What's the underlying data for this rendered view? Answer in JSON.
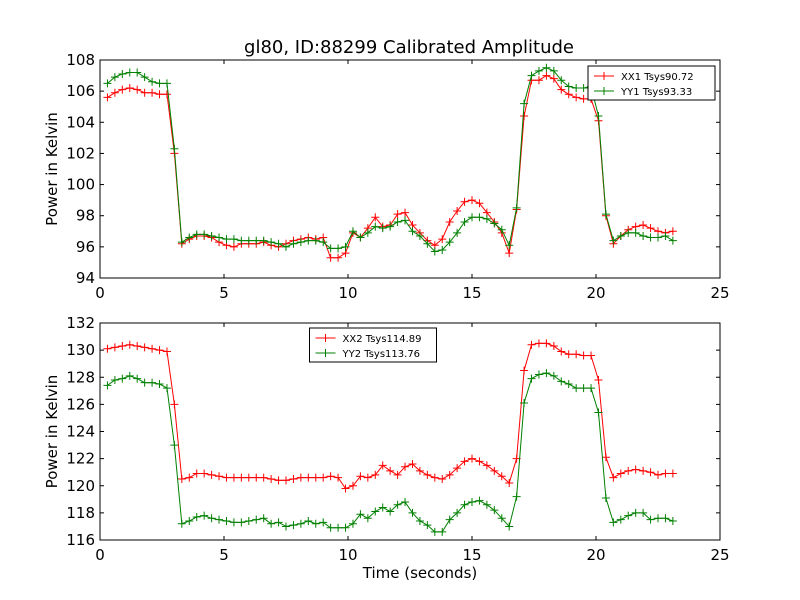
{
  "page_title": "gl80, ID:88299 Calibrated Amplitude",
  "chart_data": [
    {
      "type": "line",
      "title": "gl80, ID:88299 Calibrated Amplitude",
      "xlabel": "",
      "ylabel": "Power in Kelvin",
      "xlim": [
        0,
        25
      ],
      "ylim": [
        94,
        108
      ],
      "xticks": [
        0,
        5,
        10,
        15,
        20,
        25
      ],
      "yticks": [
        94,
        96,
        98,
        100,
        102,
        104,
        106,
        108
      ],
      "grid": false,
      "legend_position": "top-right",
      "x": [
        0.3,
        0.6,
        0.9,
        1.2,
        1.5,
        1.8,
        2.1,
        2.4,
        2.7,
        3.0,
        3.3,
        3.6,
        3.9,
        4.2,
        4.5,
        4.8,
        5.1,
        5.4,
        5.7,
        6.0,
        6.3,
        6.6,
        6.9,
        7.2,
        7.5,
        7.8,
        8.1,
        8.4,
        8.7,
        9.0,
        9.3,
        9.6,
        9.9,
        10.2,
        10.5,
        10.8,
        11.1,
        11.4,
        11.7,
        12.0,
        12.3,
        12.6,
        12.9,
        13.2,
        13.5,
        13.8,
        14.1,
        14.4,
        14.7,
        15.0,
        15.3,
        15.6,
        15.9,
        16.2,
        16.5,
        16.8,
        17.1,
        17.4,
        17.7,
        18.0,
        18.3,
        18.6,
        18.9,
        19.2,
        19.5,
        19.8,
        20.1,
        20.4,
        20.7,
        21.0,
        21.3,
        21.6,
        21.9,
        22.2,
        22.5,
        22.8,
        23.1
      ],
      "series": [
        {
          "name": "XX1 Tsys90.72",
          "color": "#ff0000",
          "values": [
            105.6,
            105.9,
            106.1,
            106.2,
            106.1,
            105.9,
            105.9,
            105.8,
            105.8,
            102.0,
            96.2,
            96.5,
            96.7,
            96.7,
            96.6,
            96.3,
            96.1,
            96.0,
            96.2,
            96.2,
            96.2,
            96.3,
            96.1,
            96.0,
            96.2,
            96.4,
            96.5,
            96.6,
            96.5,
            96.6,
            95.3,
            95.3,
            95.6,
            96.9,
            96.6,
            97.2,
            97.9,
            97.3,
            97.4,
            98.1,
            98.2,
            97.4,
            96.9,
            96.4,
            96.1,
            96.5,
            97.6,
            98.3,
            98.9,
            99.0,
            98.8,
            98.2,
            97.6,
            96.9,
            95.6,
            98.4,
            104.4,
            106.7,
            106.7,
            107.0,
            106.8,
            106.1,
            105.8,
            105.6,
            105.5,
            105.5,
            104.1,
            98.0,
            96.2,
            96.7,
            97.1,
            97.3,
            97.4,
            97.2,
            97.0,
            96.9,
            97.0
          ]
        },
        {
          "name": "YY1 Tsys93.33",
          "color": "#008000",
          "values": [
            106.5,
            106.9,
            107.1,
            107.2,
            107.2,
            106.9,
            106.6,
            106.5,
            106.5,
            102.3,
            96.3,
            96.6,
            96.8,
            96.8,
            96.7,
            96.6,
            96.5,
            96.5,
            96.4,
            96.4,
            96.4,
            96.4,
            96.3,
            96.2,
            96.0,
            96.2,
            96.3,
            96.4,
            96.4,
            96.3,
            95.9,
            95.9,
            96.0,
            97.0,
            96.6,
            96.9,
            97.3,
            97.2,
            97.3,
            97.6,
            97.7,
            97.0,
            96.7,
            96.2,
            95.7,
            95.8,
            96.3,
            96.9,
            97.6,
            97.9,
            97.9,
            97.8,
            97.5,
            97.1,
            96.1,
            98.5,
            105.2,
            107.0,
            107.3,
            107.5,
            107.3,
            106.7,
            106.3,
            106.2,
            106.2,
            106.3,
            104.4,
            98.1,
            96.4,
            96.7,
            96.9,
            96.9,
            96.7,
            96.6,
            96.6,
            96.7,
            96.4
          ]
        }
      ]
    },
    {
      "type": "line",
      "title": "",
      "xlabel": "Time (seconds)",
      "ylabel": "Power in Kelvin",
      "xlim": [
        0,
        25
      ],
      "ylim": [
        116,
        132
      ],
      "xticks": [
        0,
        5,
        10,
        15,
        20,
        25
      ],
      "yticks": [
        116,
        118,
        120,
        122,
        124,
        126,
        128,
        130,
        132
      ],
      "grid": false,
      "legend_position": "top-center",
      "x": [
        0.3,
        0.6,
        0.9,
        1.2,
        1.5,
        1.8,
        2.1,
        2.4,
        2.7,
        3.0,
        3.3,
        3.6,
        3.9,
        4.2,
        4.5,
        4.8,
        5.1,
        5.4,
        5.7,
        6.0,
        6.3,
        6.6,
        6.9,
        7.2,
        7.5,
        7.8,
        8.1,
        8.4,
        8.7,
        9.0,
        9.3,
        9.6,
        9.9,
        10.2,
        10.5,
        10.8,
        11.1,
        11.4,
        11.7,
        12.0,
        12.3,
        12.6,
        12.9,
        13.2,
        13.5,
        13.8,
        14.1,
        14.4,
        14.7,
        15.0,
        15.3,
        15.6,
        15.9,
        16.2,
        16.5,
        16.8,
        17.1,
        17.4,
        17.7,
        18.0,
        18.3,
        18.6,
        18.9,
        19.2,
        19.5,
        19.8,
        20.1,
        20.4,
        20.7,
        21.0,
        21.3,
        21.6,
        21.9,
        22.2,
        22.5,
        22.8,
        23.1
      ],
      "series": [
        {
          "name": "XX2 Tsys114.89",
          "color": "#ff0000",
          "values": [
            130.1,
            130.2,
            130.3,
            130.4,
            130.3,
            130.2,
            130.1,
            130.0,
            129.9,
            126.0,
            120.5,
            120.6,
            120.9,
            120.9,
            120.8,
            120.7,
            120.6,
            120.6,
            120.6,
            120.6,
            120.6,
            120.6,
            120.5,
            120.4,
            120.4,
            120.5,
            120.6,
            120.6,
            120.6,
            120.6,
            120.7,
            120.6,
            119.8,
            120.0,
            120.7,
            120.6,
            120.8,
            121.5,
            121.1,
            120.8,
            121.4,
            121.6,
            121.1,
            120.8,
            120.6,
            120.5,
            120.8,
            121.3,
            121.8,
            122.0,
            121.8,
            121.5,
            121.1,
            120.7,
            120.2,
            122.0,
            128.5,
            130.4,
            130.5,
            130.5,
            130.3,
            129.9,
            129.7,
            129.7,
            129.6,
            129.6,
            127.8,
            122.1,
            120.6,
            120.9,
            121.1,
            121.2,
            121.1,
            121.0,
            120.8,
            120.9,
            120.9
          ]
        },
        {
          "name": "YY2 Tsys113.76",
          "color": "#008000",
          "values": [
            127.4,
            127.8,
            127.9,
            128.1,
            127.9,
            127.6,
            127.6,
            127.5,
            127.2,
            123.0,
            117.2,
            117.4,
            117.7,
            117.8,
            117.6,
            117.5,
            117.4,
            117.3,
            117.3,
            117.4,
            117.5,
            117.6,
            117.2,
            117.3,
            117.0,
            117.1,
            117.2,
            117.4,
            117.2,
            117.3,
            116.9,
            116.9,
            116.9,
            117.2,
            117.9,
            117.6,
            118.1,
            118.4,
            118.1,
            118.6,
            118.8,
            118.0,
            117.4,
            117.1,
            116.6,
            116.6,
            117.5,
            118.0,
            118.6,
            118.8,
            118.9,
            118.6,
            118.2,
            117.6,
            117.0,
            119.2,
            126.1,
            127.9,
            128.2,
            128.3,
            128.1,
            127.7,
            127.5,
            127.2,
            127.2,
            127.2,
            125.4,
            119.1,
            117.3,
            117.5,
            117.8,
            118.0,
            118.0,
            117.5,
            117.6,
            117.6,
            117.4
          ]
        }
      ]
    }
  ]
}
